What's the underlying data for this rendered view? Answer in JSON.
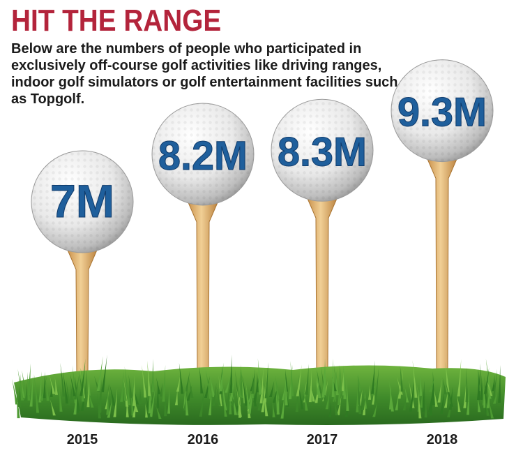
{
  "header": {
    "title": "HIT THE RANGE",
    "subtitle": "Below are the numbers of people who participated in exclusively off-course golf activities like driving ranges, indoor golf simulators or golf entertainment facilities such as Topgolf."
  },
  "colors": {
    "title": "#b3243b",
    "value_text": "#1f5f9c",
    "tee": "#e3b673",
    "grass": "#3f8a2a"
  },
  "chart_data": {
    "type": "bar",
    "categories": [
      "2015",
      "2016",
      "2017",
      "2018"
    ],
    "values": [
      7,
      8.2,
      8.3,
      9.3
    ],
    "value_labels": [
      "7M",
      "8.2M",
      "8.3M",
      "9.3M"
    ],
    "unit": "million participants",
    "title": "HIT THE RANGE",
    "xlabel": "",
    "ylabel": "",
    "grid": false,
    "legend": "none"
  }
}
